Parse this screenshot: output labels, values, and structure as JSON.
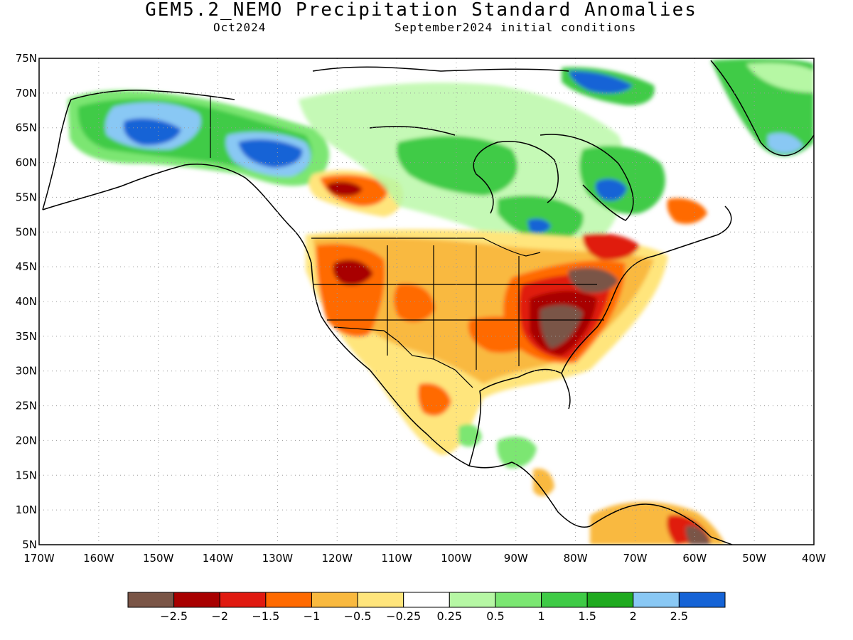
{
  "header": {
    "title": "GEM5.2_NEMO Precipitation Standard Anomalies",
    "valid_month": "Oct2024",
    "initial_conditions": "September2024 initial conditions"
  },
  "map": {
    "lat_labels": [
      "75N",
      "70N",
      "65N",
      "60N",
      "55N",
      "50N",
      "45N",
      "40N",
      "35N",
      "30N",
      "25N",
      "20N",
      "15N",
      "10N",
      "5N"
    ],
    "lon_labels": [
      "170W",
      "160W",
      "150W",
      "140W",
      "130W",
      "120W",
      "110W",
      "100W",
      "90W",
      "80W",
      "70W",
      "60W",
      "50W",
      "40W"
    ],
    "lat_range": [
      5,
      75
    ],
    "lon_range": [
      -170,
      -40
    ],
    "grid": "dotted",
    "projection": "cylindrical equidistant"
  },
  "colorbar": {
    "colors": [
      "#7a5547",
      "#a80000",
      "#e01a10",
      "#ff6a00",
      "#f9b93f",
      "#ffe57c",
      "#ffffff",
      "#b6f7a4",
      "#7be672",
      "#3fcb46",
      "#1faa1f",
      "#89c8f4",
      "#1563d6"
    ],
    "tick_labels": [
      "-2.5",
      "-2",
      "-1.5",
      "-1",
      "-0.5",
      "-0.25",
      "0.25",
      "0.5",
      "1",
      "1.5",
      "2",
      "2.5"
    ]
  }
}
